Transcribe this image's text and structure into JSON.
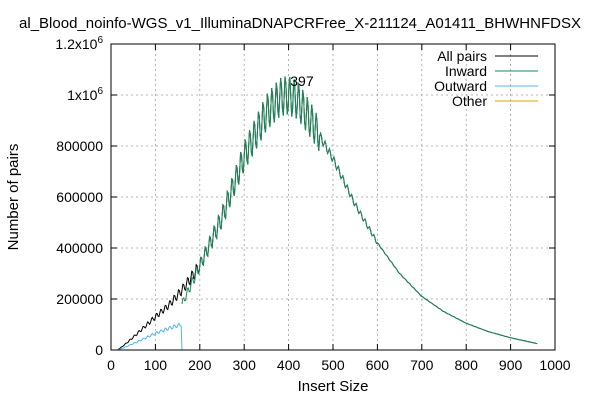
{
  "chart_data": {
    "type": "line",
    "title": "al_Blood_noinfo-WGS_v1_IlluminaDNAPCRFree_X-211124_A01411_BHWHNFDSX",
    "xlabel": "Insert Size",
    "ylabel": "Number of pairs",
    "xlim": [
      0,
      1000
    ],
    "ylim": [
      0,
      1200000
    ],
    "xticks": [
      0,
      100,
      200,
      300,
      400,
      500,
      600,
      700,
      800,
      900,
      1000
    ],
    "yticks": [
      0,
      200000,
      400000,
      600000,
      800000,
      1000000,
      1200000
    ],
    "xtick_labels": [
      "0",
      "100",
      "200",
      "300",
      "400",
      "500",
      "600",
      "700",
      "800",
      "900",
      "1000"
    ],
    "ytick_labels": [
      {
        "base": "0",
        "sup": ""
      },
      {
        "base": "200000",
        "sup": ""
      },
      {
        "base": "400000",
        "sup": ""
      },
      {
        "base": "600000",
        "sup": ""
      },
      {
        "base": "800000",
        "sup": ""
      },
      {
        "base": "1x10",
        "sup": "6"
      },
      {
        "base": "1.2x10",
        "sup": "6"
      }
    ],
    "grid": true,
    "legend_position": "top-right",
    "annotation": {
      "text": "397",
      "x": 397,
      "y": 1020000
    },
    "series": [
      {
        "name": "All pairs",
        "color": "#000000",
        "points": [
          [
            15,
            0
          ],
          [
            30,
            20000
          ],
          [
            50,
            50000
          ],
          [
            75,
            90000
          ],
          [
            100,
            130000
          ],
          [
            130,
            175000
          ],
          [
            160,
            235000
          ],
          [
            200,
            330000
          ],
          [
            250,
            520000
          ],
          [
            300,
            760000
          ],
          [
            350,
            930000
          ],
          [
            380,
            990000
          ],
          [
            397,
            1000000
          ],
          [
            420,
            980000
          ],
          [
            450,
            900000
          ],
          [
            500,
            750000
          ],
          [
            550,
            570000
          ],
          [
            600,
            420000
          ],
          [
            650,
            300000
          ],
          [
            700,
            210000
          ],
          [
            750,
            150000
          ],
          [
            800,
            105000
          ],
          [
            850,
            72000
          ],
          [
            900,
            48000
          ],
          [
            960,
            25000
          ]
        ]
      },
      {
        "name": "Inward",
        "color": "#1a8a5a",
        "points": [
          [
            160,
            180000
          ],
          [
            200,
            330000
          ],
          [
            250,
            520000
          ],
          [
            300,
            760000
          ],
          [
            350,
            930000
          ],
          [
            380,
            990000
          ],
          [
            397,
            1000000
          ],
          [
            420,
            980000
          ],
          [
            450,
            900000
          ],
          [
            500,
            750000
          ],
          [
            550,
            570000
          ],
          [
            600,
            420000
          ],
          [
            650,
            300000
          ],
          [
            700,
            210000
          ],
          [
            750,
            150000
          ],
          [
            800,
            105000
          ],
          [
            850,
            72000
          ],
          [
            900,
            48000
          ],
          [
            960,
            25000
          ]
        ]
      },
      {
        "name": "Outward",
        "color": "#56b4e9",
        "points": [
          [
            15,
            0
          ],
          [
            30,
            10000
          ],
          [
            50,
            25000
          ],
          [
            75,
            45000
          ],
          [
            100,
            65000
          ],
          [
            130,
            85000
          ],
          [
            158,
            100000
          ],
          [
            160,
            0
          ]
        ]
      },
      {
        "name": "Other",
        "color": "#e69f00",
        "points": []
      }
    ]
  }
}
